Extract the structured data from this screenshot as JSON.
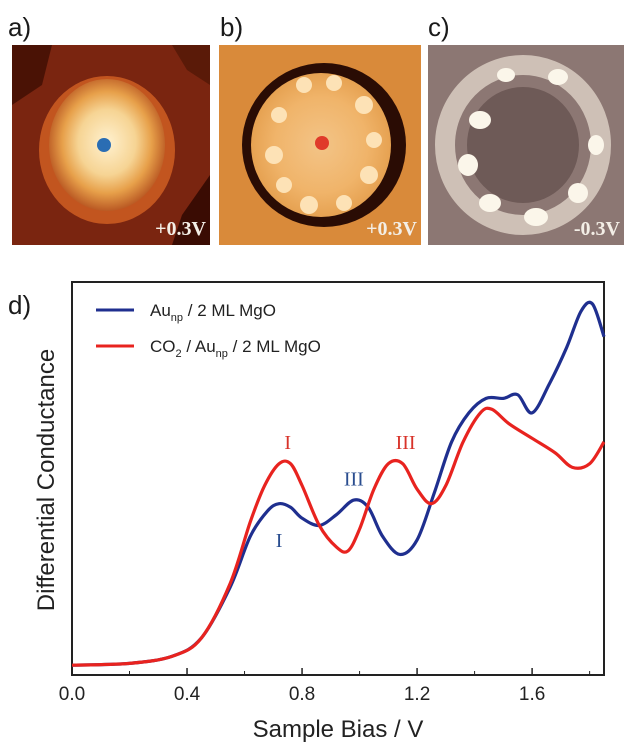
{
  "panels": [
    {
      "label": "a)",
      "bias": "+0.3V",
      "marker_color": "#2a6db3"
    },
    {
      "label": "b)",
      "bias": "+0.3V",
      "marker_color": "#e03a2a"
    },
    {
      "label": "c)",
      "bias": "-0.3V"
    }
  ],
  "colors": {
    "blue": "#1f2f8f",
    "red": "#e8231f",
    "peak_blue": "#2a4d8f",
    "peak_red": "#d8332a"
  },
  "chart_data": {
    "type": "line",
    "panel_label": "d)",
    "xlabel": "Sample Bias / V",
    "ylabel": "Differential Conductance",
    "xlim": [
      0.0,
      1.85
    ],
    "ylim": [
      0,
      1.0
    ],
    "x_ticks": [
      "0.0",
      "0.4",
      "0.8",
      "1.2",
      "1.6"
    ],
    "x_tick_values": [
      0.0,
      0.4,
      0.8,
      1.2,
      1.6
    ],
    "legend": {
      "position": "top-left",
      "entries": [
        {
          "base": "Au",
          "sub": "np",
          "rest": " / 2 ML MgO",
          "color": "#1f2f8f"
        },
        {
          "pre": "CO",
          "sub0": "2",
          "mid": " / Au",
          "sub": "np",
          "rest": " / 2 ML MgO",
          "color": "#e8231f"
        }
      ]
    },
    "series": [
      {
        "name": "Aunp / 2 ML MgO",
        "color": "#1f2f8f",
        "x": [
          0.0,
          0.2,
          0.35,
          0.45,
          0.55,
          0.62,
          0.68,
          0.72,
          0.76,
          0.8,
          0.86,
          0.92,
          0.98,
          1.03,
          1.08,
          1.14,
          1.2,
          1.26,
          1.32,
          1.38,
          1.44,
          1.5,
          1.55,
          1.6,
          1.66,
          1.72,
          1.77,
          1.81,
          1.85
        ],
        "y": [
          0.005,
          0.01,
          0.03,
          0.08,
          0.22,
          0.36,
          0.43,
          0.45,
          0.44,
          0.41,
          0.39,
          0.42,
          0.46,
          0.44,
          0.36,
          0.31,
          0.35,
          0.48,
          0.62,
          0.7,
          0.74,
          0.74,
          0.75,
          0.7,
          0.78,
          0.88,
          0.98,
          1.0,
          0.91
        ]
      },
      {
        "name": "CO2 / Aunp / 2 ML MgO",
        "color": "#e8231f",
        "x": [
          0.0,
          0.2,
          0.35,
          0.45,
          0.55,
          0.62,
          0.67,
          0.72,
          0.76,
          0.8,
          0.86,
          0.92,
          0.96,
          1.0,
          1.05,
          1.1,
          1.15,
          1.2,
          1.25,
          1.3,
          1.36,
          1.42,
          1.46,
          1.52,
          1.6,
          1.68,
          1.74,
          1.8,
          1.85
        ],
        "y": [
          0.005,
          0.01,
          0.03,
          0.08,
          0.23,
          0.4,
          0.5,
          0.56,
          0.56,
          0.5,
          0.39,
          0.33,
          0.32,
          0.38,
          0.49,
          0.56,
          0.56,
          0.49,
          0.45,
          0.5,
          0.62,
          0.7,
          0.71,
          0.67,
          0.63,
          0.59,
          0.55,
          0.56,
          0.62
        ]
      }
    ],
    "annotations": [
      {
        "text": "I",
        "x": 0.75,
        "y": 0.6,
        "color": "#d8332a"
      },
      {
        "text": "III",
        "x": 1.16,
        "y": 0.6,
        "color": "#d8332a"
      },
      {
        "text": "III",
        "x": 0.98,
        "y": 0.5,
        "color": "#2a4d8f"
      },
      {
        "text": "I",
        "x": 0.72,
        "y": 0.33,
        "color": "#2a4d8f"
      }
    ]
  }
}
